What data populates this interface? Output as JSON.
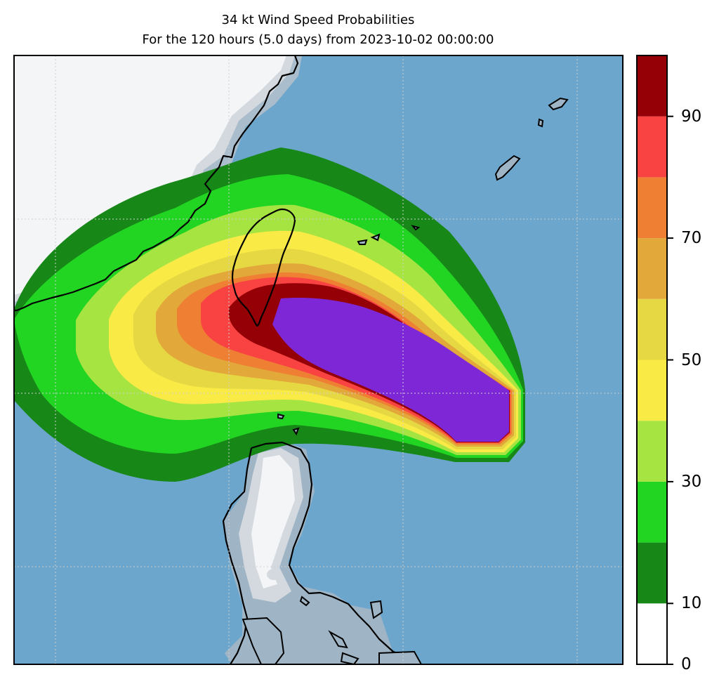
{
  "title": {
    "line1": "34 kt Wind Speed Probabilities",
    "line2": "For the 120 hours (5.0 days) from 2023-10-02 00:00:00"
  },
  "colorbar": {
    "levels": [
      0,
      10,
      20,
      30,
      40,
      50,
      60,
      70,
      80,
      90,
      100
    ],
    "colors": [
      "#ffffff",
      "#178717",
      "#22d522",
      "#a6e442",
      "#f9ea46",
      "#e6d843",
      "#e2a93a",
      "#ee7f33",
      "#f94343",
      "#940005",
      "#7e27d7"
    ],
    "tick_labels": [
      "0",
      "10",
      "30",
      "50",
      "70",
      "90"
    ]
  },
  "map": {
    "ocean_color": "#6ca6cd",
    "land_color": "#f4f5f7",
    "coast_color": "#000000",
    "features": [
      "Taiwan",
      "Luzon",
      "China coast",
      "Ryukyu Islands"
    ]
  }
}
